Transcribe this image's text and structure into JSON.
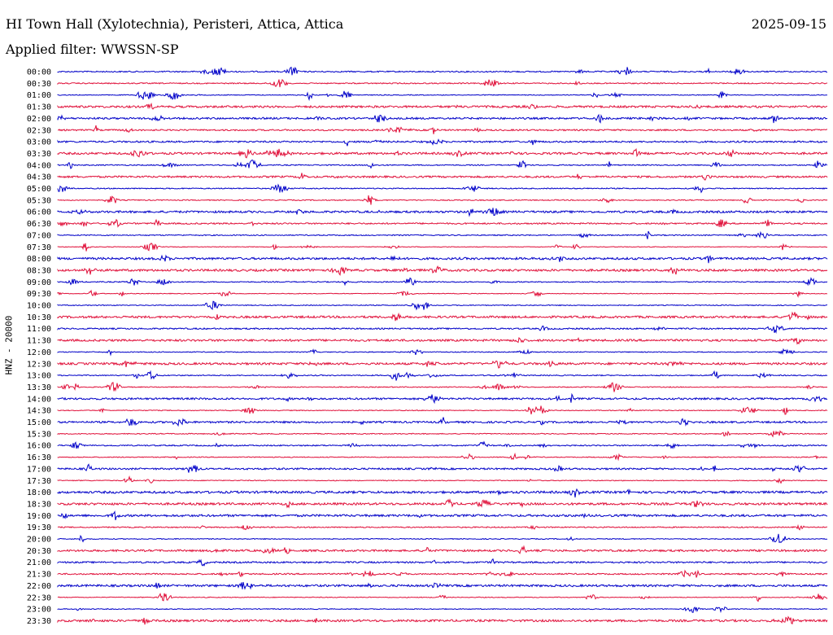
{
  "header": {
    "station": "HI Town Hall (Xylotechnia), Peristeri, Attica, Attica",
    "date": "2025-09-15",
    "filter": "Applied filter: WWSSN-SP"
  },
  "chart_data": {
    "type": "line",
    "ylabel": "HNZ - 20000",
    "row_labels": [
      "00:00",
      "00:30",
      "01:00",
      "01:30",
      "02:00",
      "02:30",
      "03:00",
      "03:30",
      "04:00",
      "04:30",
      "05:00",
      "05:30",
      "06:00",
      "06:30",
      "07:00",
      "07:30",
      "08:00",
      "08:30",
      "09:00",
      "09:30",
      "10:00",
      "10:30",
      "11:00",
      "11:30",
      "12:00",
      "12:30",
      "13:00",
      "13:30",
      "14:00",
      "14:30",
      "15:00",
      "15:30",
      "16:00",
      "16:30",
      "17:00",
      "17:30",
      "18:00",
      "18:30",
      "19:00",
      "19:30",
      "20:00",
      "20:30",
      "21:00",
      "21:30",
      "22:00",
      "22:30",
      "23:00",
      "23:30"
    ],
    "series_colors": [
      "#0000c8",
      "#e0103a"
    ],
    "row_minutes": 30
  }
}
